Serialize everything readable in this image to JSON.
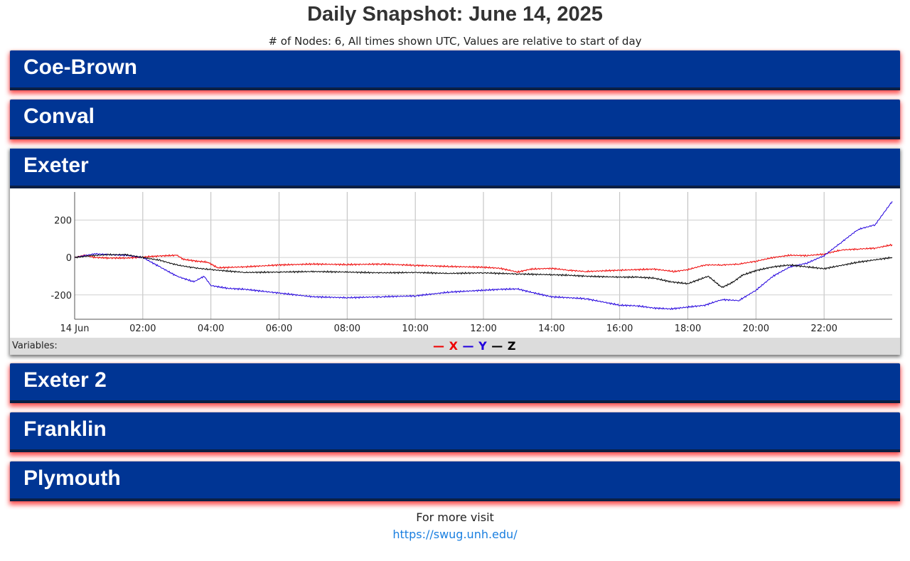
{
  "page": {
    "title": "Daily Snapshot: June 14, 2025",
    "subtitle": "# of Nodes: 6, All times shown UTC, Values are relative to start of day"
  },
  "nodes": [
    {
      "label": "Coe-Brown",
      "expanded": false
    },
    {
      "label": "Conval",
      "expanded": false
    },
    {
      "label": "Exeter",
      "expanded": true
    },
    {
      "label": "Exeter 2",
      "expanded": false
    },
    {
      "label": "Franklin",
      "expanded": false
    },
    {
      "label": "Plymouth",
      "expanded": false
    }
  ],
  "variables": {
    "label": "Variables:",
    "items": [
      {
        "name": "X",
        "color": "#ee0000"
      },
      {
        "name": "Y",
        "color": "#2200dd"
      },
      {
        "name": "Z",
        "color": "#000000"
      }
    ]
  },
  "footer": {
    "text": "For more visit",
    "link_text": "https://swug.unh.edu/",
    "link_href": "https://swug.unh.edu/"
  },
  "colors": {
    "panel_blue": "#003594",
    "panel_border": "#0b1f44",
    "shadow_red": "#ff1e1e",
    "link": "#1a7fe0"
  },
  "chart_data": {
    "type": "line",
    "title": "",
    "xlabel": "",
    "ylabel": "",
    "x_unit": "hours UTC",
    "xlim": [
      0,
      24
    ],
    "ylim": [
      -330,
      350
    ],
    "xticks": [
      {
        "x": 0,
        "label": "14 Jun"
      },
      {
        "x": 2,
        "label": "02:00"
      },
      {
        "x": 4,
        "label": "04:00"
      },
      {
        "x": 6,
        "label": "06:00"
      },
      {
        "x": 8,
        "label": "08:00"
      },
      {
        "x": 10,
        "label": "10:00"
      },
      {
        "x": 12,
        "label": "12:00"
      },
      {
        "x": 14,
        "label": "14:00"
      },
      {
        "x": 16,
        "label": "16:00"
      },
      {
        "x": 18,
        "label": "18:00"
      },
      {
        "x": 20,
        "label": "20:00"
      },
      {
        "x": 22,
        "label": "22:00"
      }
    ],
    "yticks": [
      {
        "y": 200,
        "label": "200"
      },
      {
        "y": 0,
        "label": "0"
      },
      {
        "y": -200,
        "label": "-200"
      }
    ],
    "grid": true,
    "legend": "bottom",
    "series": [
      {
        "name": "X",
        "color": "#ee0000",
        "x": [
          0,
          0.3,
          0.6,
          1,
          1.5,
          2,
          2.5,
          3,
          3.2,
          3.6,
          3.9,
          4.2,
          5,
          6,
          7,
          8,
          9,
          10,
          11,
          12,
          12.5,
          13,
          13.4,
          14,
          14.5,
          15,
          16,
          17,
          17.6,
          18,
          18.5,
          19,
          19.5,
          20,
          20.5,
          21,
          21.5,
          22,
          22.5,
          23,
          23.5,
          24
        ],
        "y": [
          0,
          12,
          0,
          -3,
          -3,
          2,
          8,
          12,
          -10,
          -20,
          -25,
          -55,
          -50,
          -40,
          -35,
          -38,
          -35,
          -42,
          -48,
          -52,
          -58,
          -78,
          -62,
          -58,
          -68,
          -75,
          -68,
          -62,
          -75,
          -65,
          -40,
          -40,
          -35,
          -20,
          0,
          12,
          10,
          18,
          40,
          45,
          50,
          68
        ]
      },
      {
        "name": "Y",
        "color": "#2200dd",
        "x": [
          0,
          0.3,
          0.6,
          1,
          1.5,
          2,
          2.5,
          3,
          3.5,
          3.8,
          4,
          4.5,
          5,
          6,
          7,
          8,
          9,
          10,
          11,
          12,
          12.5,
          13,
          13.5,
          14,
          15,
          16,
          16.5,
          17,
          17.5,
          18,
          18.5,
          19,
          19.5,
          20,
          20.5,
          21,
          21.5,
          22,
          22.5,
          23,
          23.5,
          24
        ],
        "y": [
          0,
          10,
          20,
          15,
          12,
          0,
          -50,
          -100,
          -130,
          -100,
          -150,
          -165,
          -170,
          -190,
          -210,
          -215,
          -210,
          -205,
          -185,
          -175,
          -170,
          -168,
          -190,
          -210,
          -220,
          -255,
          -258,
          -270,
          -275,
          -265,
          -255,
          -225,
          -230,
          -175,
          -100,
          -50,
          -30,
          10,
          80,
          150,
          175,
          300
        ]
      },
      {
        "name": "Z",
        "color": "#000000",
        "x": [
          0,
          0.5,
          1,
          1.5,
          2,
          2.5,
          3,
          3.5,
          4,
          5,
          6,
          7,
          8,
          9,
          10,
          11,
          12,
          13,
          14,
          14.5,
          15,
          16,
          16.5,
          17,
          17.5,
          18,
          18.6,
          19,
          19.3,
          19.6,
          20,
          20.5,
          21,
          21.5,
          22,
          23,
          24
        ],
        "y": [
          0,
          10,
          15,
          15,
          0,
          -15,
          -40,
          -55,
          -65,
          -80,
          -78,
          -75,
          -78,
          -82,
          -80,
          -85,
          -82,
          -88,
          -92,
          -95,
          -100,
          -105,
          -105,
          -110,
          -130,
          -140,
          -100,
          -160,
          -135,
          -95,
          -70,
          -50,
          -40,
          -50,
          -60,
          -25,
          0
        ]
      }
    ]
  }
}
